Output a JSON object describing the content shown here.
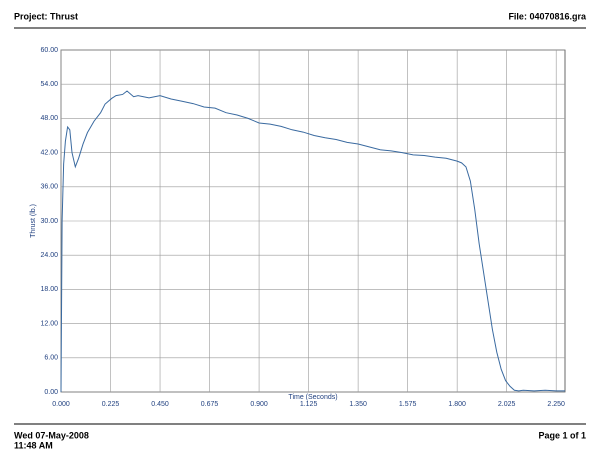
{
  "header": {
    "project": "Project: Thrust",
    "file": "File: 04070816.gra"
  },
  "footer": {
    "date": "Wed 07-May-2008",
    "time": "11:48 AM",
    "page": "Page 1 of 1"
  },
  "chart_data": {
    "type": "line",
    "xlabel": "Time (Seconds)",
    "ylabel": "Thrust (lb.)",
    "color": "#3a6aa0",
    "grid": true,
    "x": [
      0,
      0.005,
      0.012,
      0.02,
      0.03,
      0.04,
      0.05,
      0.065,
      0.08,
      0.1,
      0.12,
      0.15,
      0.18,
      0.2,
      0.23,
      0.25,
      0.28,
      0.3,
      0.33,
      0.35,
      0.4,
      0.45,
      0.5,
      0.55,
      0.6,
      0.65,
      0.7,
      0.75,
      0.8,
      0.85,
      0.9,
      0.95,
      1.0,
      1.05,
      1.1,
      1.15,
      1.2,
      1.25,
      1.3,
      1.35,
      1.4,
      1.45,
      1.5,
      1.55,
      1.6,
      1.65,
      1.7,
      1.75,
      1.8,
      1.82,
      1.84,
      1.86,
      1.88,
      1.9,
      1.92,
      1.94,
      1.96,
      1.98,
      2.0,
      2.02,
      2.04,
      2.06,
      2.08,
      2.1,
      2.15,
      2.2,
      2.25,
      2.29
    ],
    "values": [
      0,
      30,
      40,
      44,
      46.5,
      46,
      42,
      39.5,
      41,
      43.5,
      45.5,
      47.5,
      49,
      50.5,
      51.5,
      52,
      52.2,
      52.8,
      51.8,
      52,
      51.6,
      52,
      51.4,
      51,
      50.6,
      50,
      49.8,
      49,
      48.6,
      48,
      47.2,
      47,
      46.6,
      46,
      45.6,
      45,
      44.6,
      44.3,
      43.8,
      43.5,
      43,
      42.5,
      42.3,
      42,
      41.6,
      41.5,
      41.2,
      41,
      40.5,
      40.2,
      39.5,
      37,
      32,
      26,
      21,
      16,
      11,
      7,
      4,
      2,
      1,
      0.3,
      0.2,
      0.3,
      0.2,
      0.3,
      0.2,
      0.2
    ],
    "xlim": [
      0,
      2.29
    ],
    "ylim": [
      0,
      60
    ],
    "xticks": [
      {
        "value": 0,
        "label": "0.000"
      },
      {
        "value": 0.225,
        "label": "0.225"
      },
      {
        "value": 0.45,
        "label": "0.450"
      },
      {
        "value": 0.675,
        "label": "0.675"
      },
      {
        "value": 0.9,
        "label": "0.900"
      },
      {
        "value": 1.125,
        "label": "1.125"
      },
      {
        "value": 1.35,
        "label": "1.350"
      },
      {
        "value": 1.575,
        "label": "1.575"
      },
      {
        "value": 1.8,
        "label": "1.800"
      },
      {
        "value": 2.025,
        "label": "2.025"
      },
      {
        "value": 2.25,
        "label": "2.250"
      }
    ],
    "yticks": [
      {
        "value": 0,
        "label": "0.00"
      },
      {
        "value": 6,
        "label": "6.00"
      },
      {
        "value": 12,
        "label": "12.00"
      },
      {
        "value": 18,
        "label": "18.00"
      },
      {
        "value": 24,
        "label": "24.00"
      },
      {
        "value": 30,
        "label": "30.00"
      },
      {
        "value": 36,
        "label": "36.00"
      },
      {
        "value": 42,
        "label": "42.00"
      },
      {
        "value": 48,
        "label": "48.00"
      },
      {
        "value": 54,
        "label": "54.00"
      },
      {
        "value": 60,
        "label": "60.00"
      }
    ]
  }
}
